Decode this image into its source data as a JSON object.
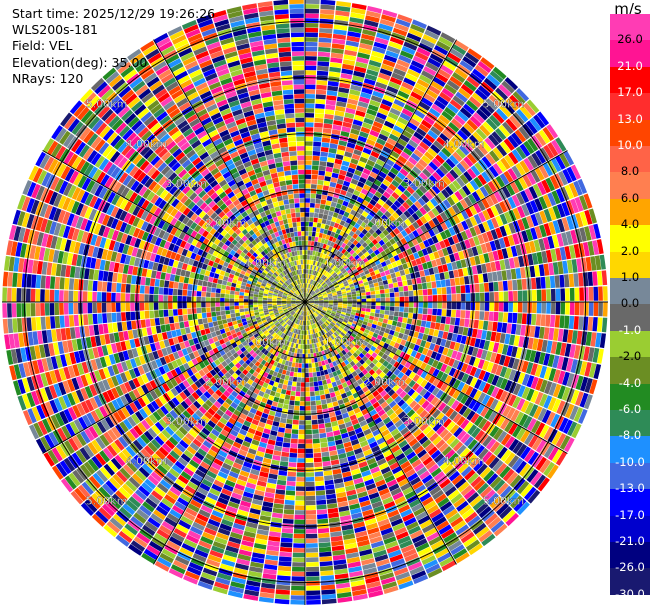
{
  "info": {
    "start_time": "Start time: 2025/12/29 19:26:26",
    "station": "WLS200s-181",
    "field": "Field: VEL",
    "elevation": "Elevation(deg): 35.00",
    "nrays": "NRays: 120"
  },
  "chart_data": {
    "type": "heatmap",
    "subtype": "radar-ppi-polar",
    "field": "VEL",
    "nrays": 120,
    "range_rings_km": [
      1.0,
      2.0,
      3.0,
      4.0,
      5.0
    ],
    "ring_label_texts": [
      "1.00km",
      "2.00km",
      "3.00km",
      "4.00km",
      "5.00km"
    ],
    "max_range_km": 5.4,
    "azimuth_spokes_deg": [
      0,
      30,
      60,
      90,
      120,
      150,
      180,
      210,
      240,
      270,
      300,
      330
    ],
    "colorbar": {
      "unit": "m/s",
      "tick_labels": [
        "26.0",
        "21.0",
        "17.0",
        "13.0",
        "10.0",
        "8.0",
        "6.0",
        "4.0",
        "2.0",
        "1.0",
        "0.0",
        "-1.0",
        "-2.0",
        "-4.0",
        "-6.0",
        "-8.0",
        "-10.0",
        "-13.0",
        "-17.0",
        "-21.0",
        "-26.0",
        "-30.0"
      ],
      "bins": [
        {
          "lo": 26,
          "hi": 30,
          "color": "#ff3cb4"
        },
        {
          "lo": 21,
          "hi": 26,
          "color": "#ff1493"
        },
        {
          "lo": 17,
          "hi": 21,
          "color": "#ff0000"
        },
        {
          "lo": 13,
          "hi": 17,
          "color": "#ff2d2d"
        },
        {
          "lo": 10,
          "hi": 13,
          "color": "#ff4500"
        },
        {
          "lo": 8,
          "hi": 10,
          "color": "#ff6347"
        },
        {
          "lo": 6,
          "hi": 8,
          "color": "#ff7f50"
        },
        {
          "lo": 4,
          "hi": 6,
          "color": "#ffa500"
        },
        {
          "lo": 2,
          "hi": 4,
          "color": "#ffff00"
        },
        {
          "lo": 1,
          "hi": 2,
          "color": "#ffd700"
        },
        {
          "lo": 0,
          "hi": 1,
          "color": "#778899"
        },
        {
          "lo": -1,
          "hi": 0,
          "color": "#696969"
        },
        {
          "lo": -2,
          "hi": -1,
          "color": "#9acd32"
        },
        {
          "lo": -4,
          "hi": -2,
          "color": "#6b8e23"
        },
        {
          "lo": -6,
          "hi": -4,
          "color": "#228b22"
        },
        {
          "lo": -8,
          "hi": -6,
          "color": "#2e8b57"
        },
        {
          "lo": -10,
          "hi": -8,
          "color": "#1e90ff"
        },
        {
          "lo": -13,
          "hi": -10,
          "color": "#4169e1"
        },
        {
          "lo": -17,
          "hi": -13,
          "color": "#0000ff"
        },
        {
          "lo": -21,
          "hi": -17,
          "color": "#0000cd"
        },
        {
          "lo": -26,
          "hi": -21,
          "color": "#000080"
        },
        {
          "lo": -30,
          "hi": -26,
          "color": "#191970"
        }
      ]
    }
  }
}
